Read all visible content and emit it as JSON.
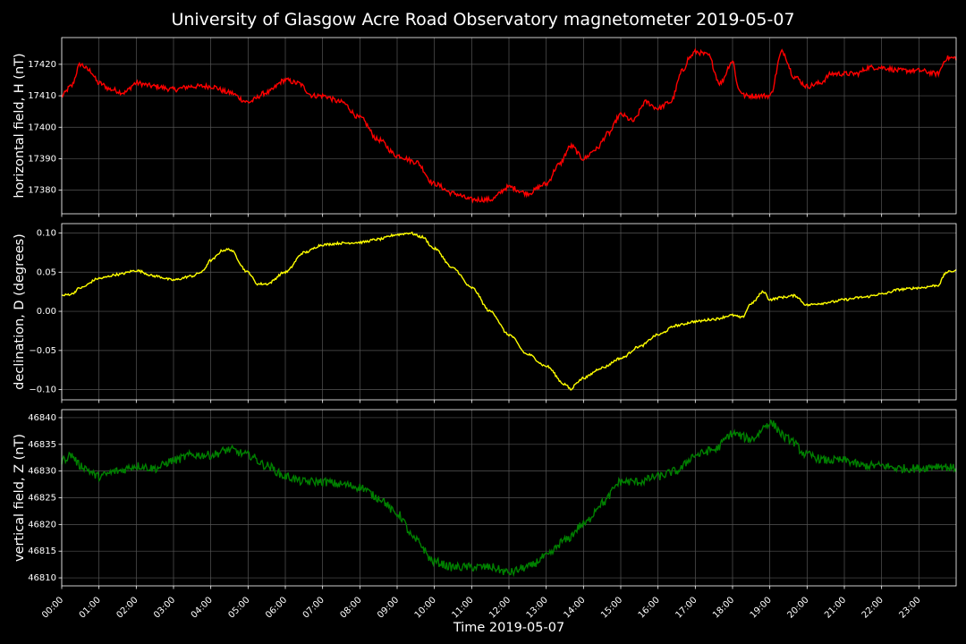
{
  "chart_data": {
    "type": "line",
    "title": "University of Glasgow Acre Road Observatory magnetometer 2019-05-07",
    "xlabel": "Time 2019-05-07",
    "x_ticks": [
      "00:00",
      "01:00",
      "02:00",
      "03:00",
      "04:00",
      "05:00",
      "06:00",
      "07:00",
      "08:00",
      "09:00",
      "10:00",
      "11:00",
      "12:00",
      "13:00",
      "14:00",
      "15:00",
      "16:00",
      "17:00",
      "18:00",
      "19:00",
      "20:00",
      "21:00",
      "22:00",
      "23:00"
    ],
    "xlim": [
      "00:00",
      "24:00"
    ],
    "grid": true,
    "panels": [
      {
        "ylabel": "horizontal field, H (nT)",
        "color": "#ff0000",
        "ylim": [
          17372.5,
          17428.5
        ],
        "y_ticks": [
          17380,
          17390,
          17400,
          17410,
          17420
        ],
        "y_tick_labels": [
          "17380",
          "17390",
          "17400",
          "17410",
          "17420"
        ],
        "noise": 0.8,
        "series": {
          "x": [
            "00:00",
            "00:15",
            "00:30",
            "00:45",
            "01:00",
            "01:20",
            "01:40",
            "02:00",
            "02:30",
            "03:00",
            "03:30",
            "04:00",
            "04:30",
            "05:00",
            "05:30",
            "06:00",
            "06:20",
            "06:45",
            "07:00",
            "07:30",
            "08:00",
            "08:30",
            "09:00",
            "09:30",
            "10:00",
            "10:30",
            "11:00",
            "11:30",
            "12:00",
            "12:30",
            "13:00",
            "13:20",
            "13:40",
            "14:00",
            "14:20",
            "14:40",
            "15:00",
            "15:20",
            "15:40",
            "16:00",
            "16:20",
            "16:40",
            "16:50",
            "17:00",
            "17:20",
            "17:40",
            "18:00",
            "18:10",
            "18:20",
            "18:40",
            "19:00",
            "19:20",
            "19:40",
            "20:00",
            "20:20",
            "20:40",
            "21:00",
            "21:20",
            "21:40",
            "22:00",
            "22:30",
            "23:00",
            "23:30",
            "23:45",
            "24:00"
          ],
          "y": [
            17410,
            17413,
            17420,
            17418,
            17414,
            17412,
            17411,
            17414,
            17413,
            17412,
            17413,
            17413,
            17411,
            17408,
            17411,
            17415,
            17414,
            17410,
            17410,
            17408,
            17403,
            17396,
            17391,
            17389,
            17382,
            17379,
            17377,
            17377,
            17381,
            17379,
            17382,
            17388,
            17394,
            17390,
            17393,
            17398,
            17404,
            17402,
            17408,
            17406,
            17408,
            17418,
            17422,
            17424,
            17423,
            17414,
            17421,
            17412,
            17410,
            17410,
            17410,
            17424,
            17416,
            17413,
            17414,
            17417,
            17417,
            17417,
            17419,
            17419,
            17418,
            17418,
            17417,
            17422,
            17422
          ]
        }
      },
      {
        "ylabel": "declination, D (degrees)",
        "color": "#ffff00",
        "ylim": [
          -0.113,
          0.112
        ],
        "y_ticks": [
          -0.1,
          -0.05,
          0.0,
          0.05,
          0.1
        ],
        "y_tick_labels": [
          "−0.10",
          "−0.05",
          "0.00",
          "0.05",
          "0.10"
        ],
        "noise": 0.0015,
        "series": {
          "x": [
            "00:00",
            "00:15",
            "00:30",
            "01:00",
            "01:30",
            "02:00",
            "02:30",
            "03:00",
            "03:30",
            "03:45",
            "04:00",
            "04:20",
            "04:30",
            "05:00",
            "05:15",
            "05:30",
            "06:00",
            "06:30",
            "07:00",
            "07:30",
            "08:00",
            "08:30",
            "09:00",
            "09:20",
            "09:40",
            "10:00",
            "10:30",
            "11:00",
            "11:30",
            "12:00",
            "12:30",
            "13:00",
            "13:30",
            "13:40",
            "13:50",
            "14:00",
            "14:30",
            "15:00",
            "15:30",
            "16:00",
            "16:30",
            "17:00",
            "17:30",
            "18:00",
            "18:15",
            "18:30",
            "18:50",
            "19:00",
            "19:20",
            "19:40",
            "20:00",
            "20:20",
            "20:40",
            "21:00",
            "21:30",
            "22:00",
            "22:30",
            "23:00",
            "23:30",
            "23:45",
            "24:00"
          ],
          "y": [
            0.02,
            0.022,
            0.03,
            0.042,
            0.047,
            0.052,
            0.045,
            0.04,
            0.045,
            0.05,
            0.065,
            0.078,
            0.079,
            0.05,
            0.035,
            0.035,
            0.05,
            0.075,
            0.085,
            0.087,
            0.088,
            0.092,
            0.098,
            0.1,
            0.095,
            0.08,
            0.055,
            0.03,
            0.0,
            -0.03,
            -0.055,
            -0.07,
            -0.093,
            -0.1,
            -0.09,
            -0.085,
            -0.072,
            -0.06,
            -0.045,
            -0.03,
            -0.018,
            -0.013,
            -0.01,
            -0.005,
            -0.008,
            0.01,
            0.025,
            0.015,
            0.018,
            0.02,
            0.008,
            0.01,
            0.012,
            0.015,
            0.018,
            0.022,
            0.028,
            0.03,
            0.033,
            0.05,
            0.052
          ]
        }
      },
      {
        "ylabel": "vertical field, Z (nT)",
        "color": "#008000",
        "ylim": [
          46808.5,
          46841.5
        ],
        "y_ticks": [
          46810,
          46815,
          46820,
          46825,
          46830,
          46835,
          46840
        ],
        "y_tick_labels": [
          "46810",
          "46815",
          "46820",
          "46825",
          "46830",
          "46835",
          "46840"
        ],
        "noise": 0.8,
        "series": {
          "x": [
            "00:00",
            "00:15",
            "00:30",
            "01:00",
            "01:30",
            "02:00",
            "02:30",
            "03:00",
            "03:30",
            "04:00",
            "04:30",
            "05:00",
            "05:30",
            "06:00",
            "06:30",
            "07:00",
            "07:30",
            "08:00",
            "08:30",
            "09:00",
            "09:30",
            "10:00",
            "10:30",
            "11:00",
            "11:30",
            "12:00",
            "12:30",
            "13:00",
            "13:30",
            "14:00",
            "14:30",
            "15:00",
            "15:30",
            "16:00",
            "16:30",
            "17:00",
            "17:30",
            "18:00",
            "18:30",
            "19:00",
            "19:30",
            "20:00",
            "20:30",
            "21:00",
            "21:30",
            "22:00",
            "22:30",
            "23:00",
            "23:30",
            "24:00"
          ],
          "y": [
            46832,
            46833,
            46831,
            46829,
            46830,
            46831,
            46830.5,
            46832,
            46833,
            46833,
            46834,
            46833,
            46831,
            46829,
            46828,
            46828,
            46827.5,
            46827,
            46825,
            46822,
            46817,
            46813,
            46812,
            46812,
            46812,
            46811,
            46812,
            46814,
            46817,
            46820,
            46824,
            46828,
            46828,
            46829,
            46830,
            46833,
            46834,
            46837,
            46836,
            46839,
            46836,
            46833,
            46832,
            46832,
            46831,
            46831,
            46830.5,
            46830.5,
            46831,
            46830.5
          ]
        }
      }
    ]
  }
}
